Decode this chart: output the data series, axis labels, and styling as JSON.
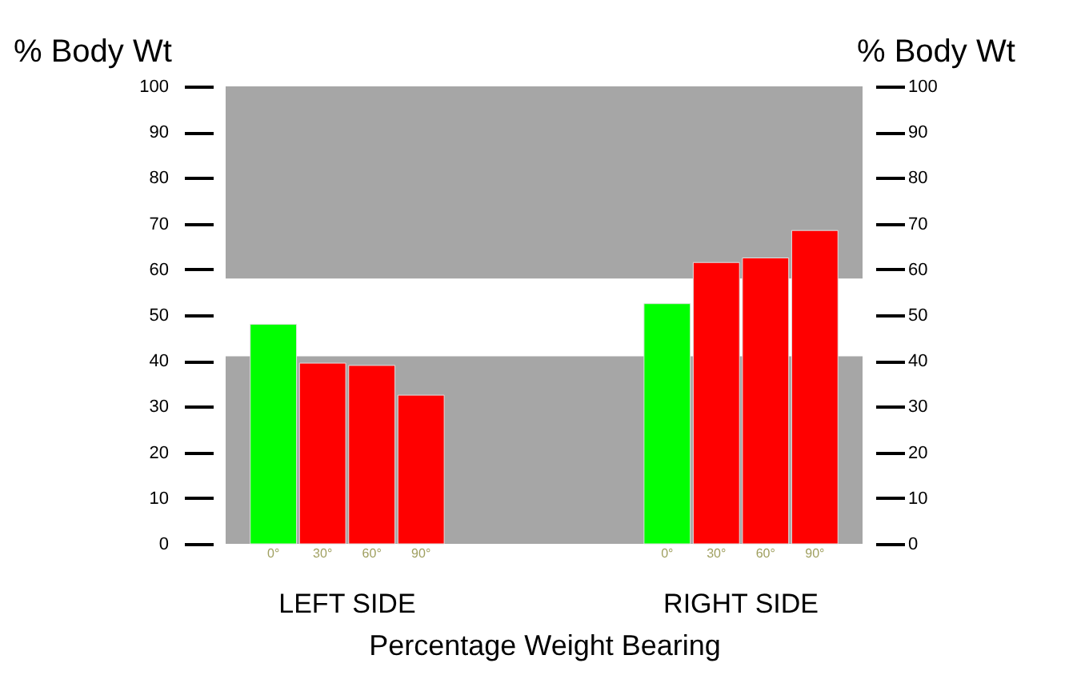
{
  "chart_data": {
    "type": "bar",
    "xlabel": "Percentage Weight Bearing",
    "ylabel": "% Body Wt",
    "y2label": "% Body Wt",
    "categories": [
      "0°",
      "30°",
      "60°",
      "90°",
      null,
      null,
      null,
      null,
      "0°",
      "30°",
      "60°",
      "90°"
    ],
    "values": [
      48,
      39.5,
      39,
      32.5,
      null,
      null,
      null,
      null,
      52.5,
      61.5,
      62.5,
      68.5
    ],
    "colors": [
      "#00ff00",
      "#ff0000",
      "#ff0000",
      "#ff0000",
      null,
      null,
      null,
      null,
      "#00ff00",
      "#ff0000",
      "#ff0000",
      "#ff0000"
    ],
    "ylim": [
      0,
      100
    ],
    "yticks": [
      0,
      10,
      20,
      30,
      40,
      50,
      60,
      70,
      80,
      90,
      100
    ],
    "y2lim": [
      0,
      100
    ],
    "y2ticks": [
      0,
      10,
      20,
      30,
      40,
      50,
      60,
      70,
      80,
      90,
      100
    ],
    "bands": [
      {
        "axis": "y",
        "from": 0,
        "to": 41,
        "color": "#a6a6a6"
      },
      {
        "axis": "y",
        "from": 58,
        "to": 100,
        "color": "#a6a6a6"
      }
    ],
    "annotations": [
      "LEFT SIDE",
      "RIGHT SIDE"
    ],
    "grid": false
  }
}
